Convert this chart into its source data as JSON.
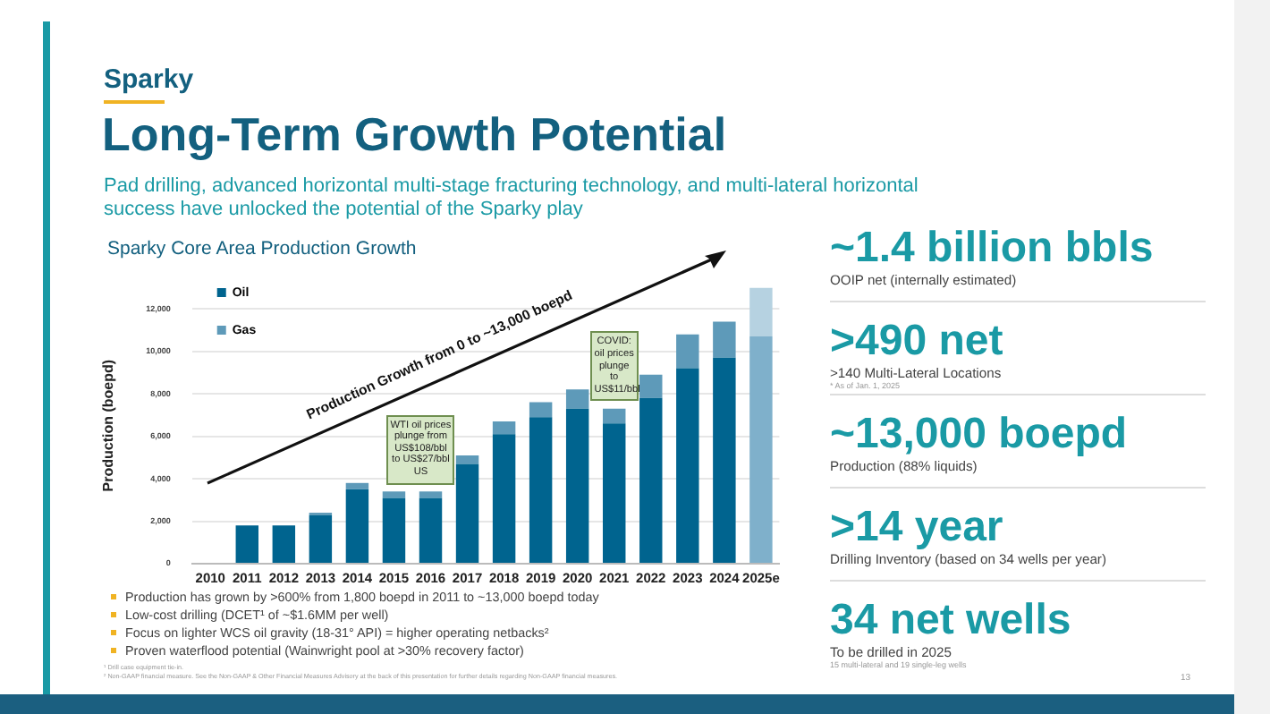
{
  "chart_data": {
    "type": "bar",
    "stacked": true,
    "title": "Long-Term Growth Potential",
    "subtitle": "Pad drilling, advanced horizontal multi-stage fracturing technology, and multi-lateral horizontal success have unlocked the potential of the Sparky play",
    "ylabel": "Production (boepd)",
    "categories": [
      "2010",
      "2011",
      "2012",
      "2013",
      "2014",
      "2015",
      "2016",
      "2017",
      "2018",
      "2019",
      "2020",
      "2021",
      "2022",
      "2023",
      "2024",
      "2025e"
    ],
    "series": [
      {
        "name": "Oil",
        "color": "#00648f",
        "colors": [
          "#00648f",
          "#00648f",
          "#00648f",
          "#00648f",
          "#00648f",
          "#00648f",
          "#00648f",
          "#00648f",
          "#00648f",
          "#00648f",
          "#00648f",
          "#00648f",
          "#00648f",
          "#00648f",
          "#00648f",
          "#7fb0cb"
        ],
        "values": [
          0,
          1800,
          1800,
          2300,
          3500,
          3100,
          3100,
          4700,
          6100,
          6900,
          7300,
          6600,
          7800,
          9200,
          9700,
          10700
        ]
      },
      {
        "name": "Gas",
        "color": "#5e9ab9",
        "colors": [
          "#5e9ab9",
          "#5e9ab9",
          "#5e9ab9",
          "#5e9ab9",
          "#5e9ab9",
          "#5e9ab9",
          "#5e9ab9",
          "#5e9ab9",
          "#5e9ab9",
          "#5e9ab9",
          "#5e9ab9",
          "#5e9ab9",
          "#5e9ab9",
          "#5e9ab9",
          "#5e9ab9",
          "#b6d2e1"
        ],
        "values": [
          0,
          0,
          0,
          100,
          300,
          300,
          300,
          400,
          600,
          700,
          900,
          700,
          1100,
          1600,
          1700,
          2300
        ]
      }
    ],
    "ylim": [
      0,
      13000
    ],
    "yticks": [
      0,
      {
        "value": 2000,
        "label": "2,000"
      },
      {
        "value": 4000,
        "label": "4,000"
      },
      {
        "value": 6000,
        "label": "6,000"
      },
      {
        "value": 8000,
        "label": "8,000"
      },
      {
        "value": 10000,
        "label": "10,000"
      },
      {
        "value": 12000,
        "label": "12,000"
      }
    ],
    "grid": "y",
    "legend": "top left",
    "annotations": [
      "Sparky",
      "Sparky Core Area Production Growth",
      "Production Growth from 0 to ~13,000 boepd",
      {
        "text": "WTI oil prices plunge from US$108/bbl to US$27/bbl US",
        "x": "2015",
        "y": 3400
      },
      {
        "text": "COVID: oil prices plunge to US$11/bbl",
        "x": "2021",
        "y": 7300
      },
      "Production has grown by >600% from 1,800 boepd in 2011 to ~13,000 boepd today",
      "Low-cost drilling (DCET¹ of ~$1.6MM per well)",
      "Focus on lighter WCS oil gravity (18-31° API) = higher operating netbacks²",
      "Proven waterflood potential (Wainwright pool at >30% recovery factor)",
      "¹ Drill case equipment tie-in.",
      "² Non-GAAP financial measure. See the Non-GAAP & Other Financial Measures Advisory at the back of this presentation for further details regarding Non-GAAP financial measures.",
      "~1.4 billion bbls",
      "OOIP net (internally estimated)",
      ">490 net",
      ">140 Multi-Lateral Locations",
      "* As of Jan. 1, 2025",
      "~13,000 boepd",
      "Production (88% liquids)",
      ">14 year",
      "Drilling Inventory (based on 34 wells per year)",
      "34 net wells",
      "To be drilled in 2025",
      "15 multi-lateral and 19 single-leg wells",
      "13"
    ]
  }
}
